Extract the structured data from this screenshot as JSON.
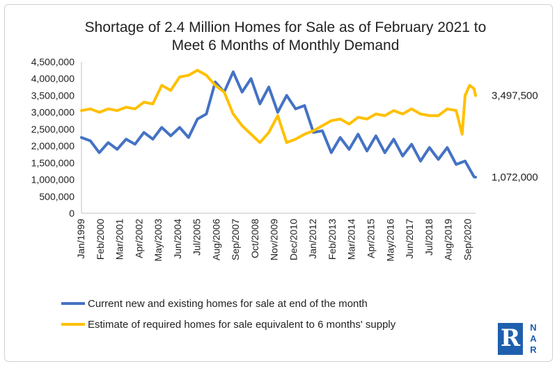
{
  "chart_data": {
    "type": "line",
    "title_lines": [
      "Shortage of 2.4 Million Homes for Sale as of February 2021 to",
      "Meet 6 Months of Monthly Demand"
    ],
    "xlabel": "",
    "ylabel": "",
    "ylim": [
      0,
      4500000
    ],
    "yticks": [
      "4,500,000",
      "4,000,000",
      "3,500,000",
      "3,000,000",
      "2,500,000",
      "2,000,000",
      "1,500,000",
      "1,000,000",
      "500,000",
      "0"
    ],
    "yticks_values": [
      4500000,
      4000000,
      3500000,
      3000000,
      2500000,
      2000000,
      1500000,
      1000000,
      500000,
      0
    ],
    "x_tick_labels": [
      "Jan/1999",
      "Feb/2000",
      "Mar/2001",
      "Apr/2002",
      "May/2003",
      "Jun/2004",
      "Jul/2005",
      "Aug/2006",
      "Sep/2007",
      "Oct/2008",
      "Nov/2009",
      "Dec/2010",
      "Jan/2012",
      "Feb/2013",
      "Mar/2014",
      "Apr/2015",
      "May/2016",
      "Jun/2017",
      "Jul/2018",
      "Aug/2019",
      "Sep/2020"
    ],
    "x_start": "Jan/1999",
    "x_end": "Feb/2021",
    "grid": false,
    "legend_position": "bottom",
    "series": [
      {
        "name": "Current new and existing homes for sale at end of the month",
        "color": "#4472c4",
        "end_label": "1,072,000",
        "points": [
          [
            "Jan/1999",
            2250000
          ],
          [
            "Jul/1999",
            2150000
          ],
          [
            "Jan/2000",
            1800000
          ],
          [
            "Jul/2000",
            2100000
          ],
          [
            "Jan/2001",
            1900000
          ],
          [
            "Jul/2001",
            2200000
          ],
          [
            "Jan/2002",
            2050000
          ],
          [
            "Jul/2002",
            2400000
          ],
          [
            "Jan/2003",
            2200000
          ],
          [
            "Jul/2003",
            2550000
          ],
          [
            "Jan/2004",
            2300000
          ],
          [
            "Jul/2004",
            2550000
          ],
          [
            "Jan/2005",
            2250000
          ],
          [
            "Jul/2005",
            2800000
          ],
          [
            "Jan/2006",
            2950000
          ],
          [
            "Jul/2006",
            3900000
          ],
          [
            "Jan/2007",
            3600000
          ],
          [
            "Jul/2007",
            4200000
          ],
          [
            "Jan/2008",
            3600000
          ],
          [
            "Jul/2008",
            4000000
          ],
          [
            "Jan/2009",
            3250000
          ],
          [
            "Jul/2009",
            3750000
          ],
          [
            "Jan/2010",
            3000000
          ],
          [
            "Jul/2010",
            3500000
          ],
          [
            "Jan/2011",
            3100000
          ],
          [
            "Jul/2011",
            3200000
          ],
          [
            "Jan/2012",
            2400000
          ],
          [
            "Jul/2012",
            2450000
          ],
          [
            "Jan/2013",
            1800000
          ],
          [
            "Jul/2013",
            2250000
          ],
          [
            "Jan/2014",
            1900000
          ],
          [
            "Jul/2014",
            2350000
          ],
          [
            "Jan/2015",
            1850000
          ],
          [
            "Jul/2015",
            2300000
          ],
          [
            "Jan/2016",
            1800000
          ],
          [
            "Jul/2016",
            2200000
          ],
          [
            "Jan/2017",
            1700000
          ],
          [
            "Jul/2017",
            2050000
          ],
          [
            "Jan/2018",
            1550000
          ],
          [
            "Jul/2018",
            1950000
          ],
          [
            "Jan/2019",
            1600000
          ],
          [
            "Jul/2019",
            1950000
          ],
          [
            "Jan/2020",
            1450000
          ],
          [
            "Jul/2020",
            1550000
          ],
          [
            "Jan/2021",
            1080000
          ],
          [
            "Feb/2021",
            1072000
          ]
        ]
      },
      {
        "name": "Estimate of required homes for sale equivalent to 6 months' supply",
        "color": "#ffc000",
        "end_label": "3,497,500",
        "points": [
          [
            "Jan/1999",
            3050000
          ],
          [
            "Jul/1999",
            3100000
          ],
          [
            "Jan/2000",
            3000000
          ],
          [
            "Jul/2000",
            3100000
          ],
          [
            "Jan/2001",
            3050000
          ],
          [
            "Jul/2001",
            3150000
          ],
          [
            "Jan/2002",
            3100000
          ],
          [
            "Jul/2002",
            3300000
          ],
          [
            "Jan/2003",
            3250000
          ],
          [
            "Jul/2003",
            3800000
          ],
          [
            "Jan/2004",
            3650000
          ],
          [
            "Jul/2004",
            4050000
          ],
          [
            "Jan/2005",
            4100000
          ],
          [
            "Jul/2005",
            4250000
          ],
          [
            "Jan/2006",
            4100000
          ],
          [
            "Jul/2006",
            3800000
          ],
          [
            "Jan/2007",
            3600000
          ],
          [
            "Jul/2007",
            2950000
          ],
          [
            "Jan/2008",
            2600000
          ],
          [
            "Jul/2008",
            2350000
          ],
          [
            "Jan/2009",
            2100000
          ],
          [
            "Jul/2009",
            2400000
          ],
          [
            "Jan/2010",
            2900000
          ],
          [
            "Jul/2010",
            2100000
          ],
          [
            "Jan/2011",
            2200000
          ],
          [
            "Jul/2011",
            2350000
          ],
          [
            "Jan/2012",
            2450000
          ],
          [
            "Jul/2012",
            2600000
          ],
          [
            "Jan/2013",
            2750000
          ],
          [
            "Jul/2013",
            2800000
          ],
          [
            "Jan/2014",
            2650000
          ],
          [
            "Jul/2014",
            2850000
          ],
          [
            "Jan/2015",
            2800000
          ],
          [
            "Jul/2015",
            2950000
          ],
          [
            "Jan/2016",
            2900000
          ],
          [
            "Jul/2016",
            3050000
          ],
          [
            "Jan/2017",
            2950000
          ],
          [
            "Jul/2017",
            3100000
          ],
          [
            "Jan/2018",
            2950000
          ],
          [
            "Jul/2018",
            2900000
          ],
          [
            "Jan/2019",
            2900000
          ],
          [
            "Jul/2019",
            3100000
          ],
          [
            "Jan/2020",
            3050000
          ],
          [
            "May/2020",
            2350000
          ],
          [
            "Jul/2020",
            3500000
          ],
          [
            "Oct/2020",
            3800000
          ],
          [
            "Jan/2021",
            3700000
          ],
          [
            "Feb/2021",
            3497500
          ]
        ]
      }
    ]
  },
  "logo": {
    "mark": "R",
    "letters": [
      "N",
      "A",
      "R"
    ],
    "color": "#1f5fae"
  }
}
